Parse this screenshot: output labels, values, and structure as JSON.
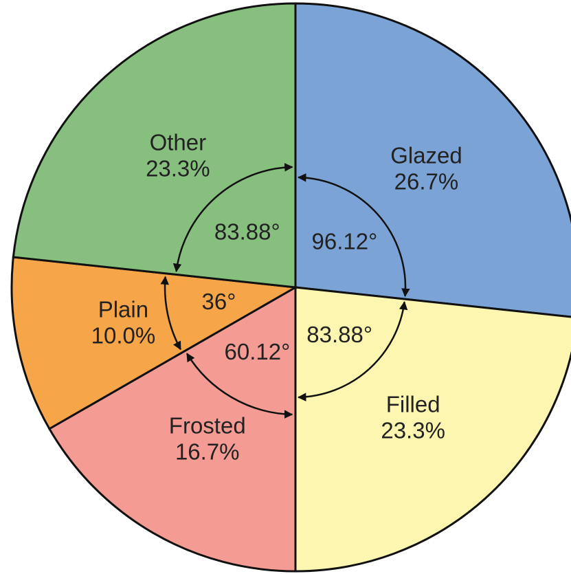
{
  "chart_data": {
    "type": "pie",
    "categories": [
      "Glazed",
      "Filled",
      "Frosted",
      "Plain",
      "Other"
    ],
    "values": [
      26.7,
      23.3,
      16.7,
      10.0,
      23.3
    ],
    "value_labels": [
      "26.7%",
      "23.3%",
      "16.7%",
      "10.0%",
      "23.3%"
    ],
    "colors": [
      "#7ba3d6",
      "#fdf6b0",
      "#f49b94",
      "#f6a548",
      "#86bf7e"
    ],
    "angles": [
      96.12,
      83.88,
      60.12,
      36,
      83.88
    ],
    "angle_labels": [
      "96.12°",
      "83.88°",
      "60.12°",
      "36°",
      "83.88°"
    ]
  }
}
